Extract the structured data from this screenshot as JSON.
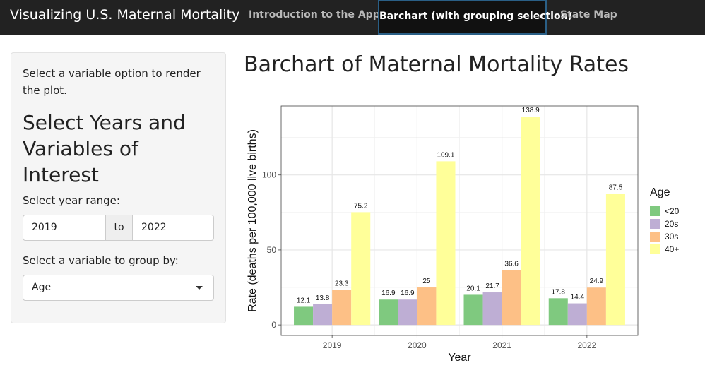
{
  "navbar": {
    "brand": "Visualizing U.S. Maternal Mortality",
    "tabs": [
      {
        "label": "Introduction to the App"
      },
      {
        "label": "Barchart (with grouping selection)"
      },
      {
        "label": "State Map"
      }
    ],
    "active_tab": 1
  },
  "sidebar": {
    "intro": "Select a variable option to render the plot.",
    "heading": "Select Years and Variables of Interest",
    "year_label": "Select year range:",
    "year_from": "2019",
    "year_sep": "to",
    "year_to": "2022",
    "group_label": "Select a variable to group by:",
    "group_value": "Age"
  },
  "main": {
    "title": "Barchart of Maternal Mortality Rates"
  },
  "colors": {
    "<20": "#7fc97f",
    "20s": "#beaed4",
    "30s": "#fdc086",
    "40+": "#ffff99"
  },
  "chart_data": {
    "type": "bar",
    "categories": [
      "2019",
      "2020",
      "2021",
      "2022"
    ],
    "series": [
      {
        "name": "<20",
        "values": [
          12.1,
          16.9,
          20.1,
          17.8
        ]
      },
      {
        "name": "20s",
        "values": [
          13.8,
          16.9,
          21.7,
          14.4
        ]
      },
      {
        "name": "30s",
        "values": [
          23.3,
          25,
          36.6,
          24.9
        ]
      },
      {
        "name": "40+",
        "values": [
          75.2,
          109.1,
          138.9,
          87.5
        ]
      }
    ],
    "data_labels": [
      [
        "12.1",
        "16.9",
        "20.1",
        "17.8"
      ],
      [
        "13.8",
        "16.9",
        "21.7",
        "14.4"
      ],
      [
        "23.3",
        "25",
        "36.6",
        "24.9"
      ],
      [
        "75.2",
        "109.1",
        "138.9",
        "87.5"
      ]
    ],
    "title": "",
    "xlabel": "Year",
    "ylabel": "Rate (deaths per 100,000 live births)",
    "yticks": [
      0,
      50,
      100
    ],
    "ylim": [
      -7,
      146
    ],
    "legend_title": "Age",
    "legend_position": "right",
    "grid": true
  }
}
